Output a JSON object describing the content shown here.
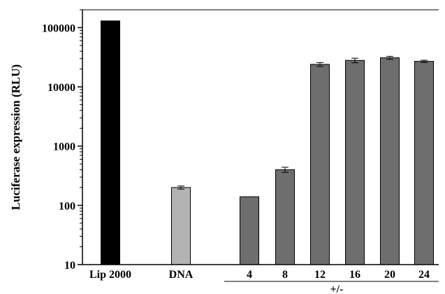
{
  "chart_data": {
    "type": "bar",
    "title": "",
    "xlabel": "",
    "ylabel": "Luciferase expression (RLU)",
    "yscale": "log",
    "ylim": [
      10,
      200000
    ],
    "y_ticks": [
      10,
      100,
      1000,
      10000,
      100000
    ],
    "grid": false,
    "legend": "none",
    "categories": [
      "Lip 2000",
      "DNA",
      "4",
      "8",
      "12",
      "16",
      "20",
      "24"
    ],
    "values": [
      130000,
      200,
      140,
      400,
      24000,
      28000,
      31000,
      27000
    ],
    "errors": [
      0,
      12,
      0,
      40,
      1800,
      2500,
      1800,
      1200
    ],
    "bar_colors": [
      "#000000",
      "#b3b3b3",
      "#6e6e6e",
      "#6e6e6e",
      "#6e6e6e",
      "#6e6e6e",
      "#6e6e6e",
      "#6e6e6e"
    ],
    "group_label": "+/-"
  }
}
